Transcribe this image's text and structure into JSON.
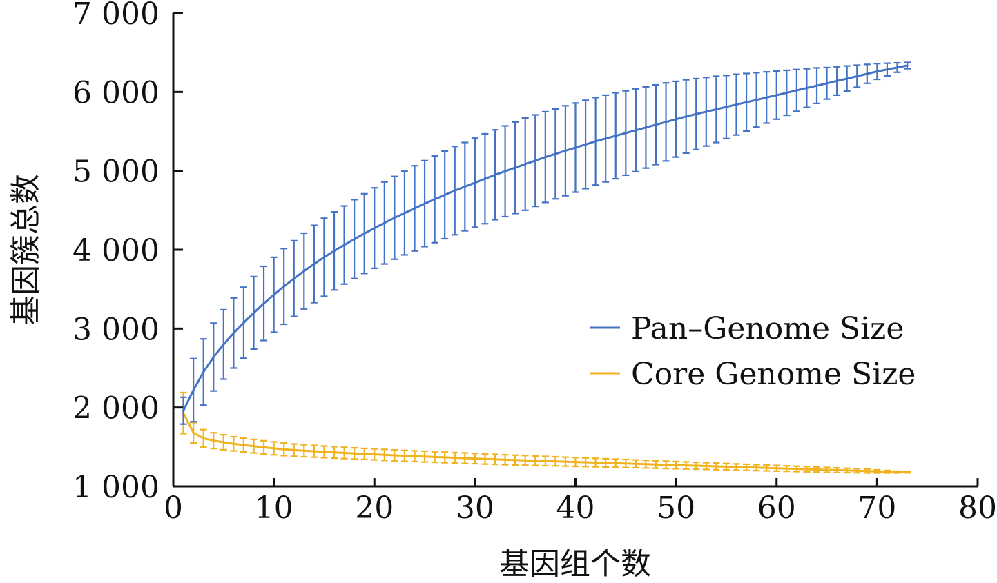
{
  "chart_data": {
    "type": "line",
    "xlabel": "基因组个数",
    "ylabel": "基因簇总数",
    "xlim": [
      0,
      80
    ],
    "ylim": [
      1000,
      7000
    ],
    "xticks": [
      "0",
      "10",
      "20",
      "30",
      "40",
      "50",
      "60",
      "70",
      "80"
    ],
    "yticks": [
      "1 000",
      "2 000",
      "3 000",
      "4 000",
      "5 000",
      "6 000",
      "7 000"
    ],
    "grid": false,
    "legend_position": "right",
    "x": [
      1,
      2,
      3,
      4,
      5,
      6,
      7,
      8,
      9,
      10,
      11,
      12,
      13,
      14,
      15,
      16,
      17,
      18,
      19,
      20,
      21,
      22,
      23,
      24,
      25,
      26,
      27,
      28,
      29,
      30,
      31,
      32,
      33,
      34,
      35,
      36,
      37,
      38,
      39,
      40,
      41,
      42,
      43,
      44,
      45,
      46,
      47,
      48,
      49,
      50,
      51,
      52,
      53,
      54,
      55,
      56,
      57,
      58,
      59,
      60,
      61,
      62,
      63,
      64,
      65,
      66,
      67,
      68,
      69,
      70,
      71,
      72,
      73
    ],
    "series": [
      {
        "name": "Pan–Genome Size",
        "color": "#4472C4",
        "values": [
          1960,
          2220,
          2450,
          2640,
          2800,
          2945,
          3075,
          3200,
          3320,
          3430,
          3535,
          3635,
          3730,
          3820,
          3905,
          3985,
          4060,
          4135,
          4205,
          4275,
          4340,
          4405,
          4465,
          4525,
          4585,
          4640,
          4695,
          4750,
          4800,
          4850,
          4900,
          4950,
          4995,
          5040,
          5085,
          5130,
          5175,
          5215,
          5255,
          5295,
          5335,
          5375,
          5410,
          5445,
          5480,
          5515,
          5550,
          5585,
          5620,
          5655,
          5690,
          5720,
          5750,
          5780,
          5810,
          5840,
          5870,
          5900,
          5930,
          5960,
          5990,
          6020,
          6050,
          6080,
          6110,
          6140,
          6170,
          6200,
          6230,
          6260,
          6285,
          6310,
          6335
        ],
        "errors": [
          170,
          400,
          420,
          430,
          440,
          445,
          450,
          460,
          470,
          475,
          480,
          480,
          480,
          490,
          495,
          495,
          495,
          500,
          505,
          510,
          520,
          525,
          530,
          540,
          545,
          550,
          555,
          560,
          560,
          565,
          570,
          570,
          575,
          580,
          585,
          580,
          575,
          570,
          570,
          565,
          560,
          555,
          550,
          545,
          535,
          525,
          515,
          505,
          495,
          480,
          465,
          450,
          435,
          420,
          400,
          385,
          365,
          345,
          325,
          305,
          285,
          265,
          245,
          225,
          200,
          180,
          160,
          140,
          120,
          100,
          80,
          60,
          40
        ]
      },
      {
        "name": "Core Genome Size",
        "color": "#F0B21E",
        "values": [
          1930,
          1680,
          1610,
          1580,
          1560,
          1540,
          1525,
          1510,
          1495,
          1482,
          1470,
          1460,
          1452,
          1445,
          1438,
          1431,
          1424,
          1418,
          1412,
          1406,
          1400,
          1394,
          1388,
          1383,
          1378,
          1373,
          1368,
          1363,
          1358,
          1353,
          1348,
          1343,
          1338,
          1334,
          1330,
          1326,
          1322,
          1318,
          1314,
          1310,
          1306,
          1302,
          1298,
          1294,
          1290,
          1286,
          1282,
          1278,
          1274,
          1270,
          1266,
          1262,
          1258,
          1254,
          1250,
          1246,
          1242,
          1238,
          1234,
          1230,
          1226,
          1222,
          1218,
          1214,
          1210,
          1206,
          1202,
          1198,
          1194,
          1190,
          1186,
          1182,
          1180
        ],
        "errors": [
          260,
          130,
          110,
          100,
          95,
          90,
          88,
          86,
          84,
          82,
          80,
          78,
          76,
          75,
          74,
          73,
          72,
          71,
          70,
          70,
          70,
          69,
          69,
          68,
          68,
          67,
          67,
          66,
          66,
          65,
          65,
          64,
          63,
          62,
          61,
          60,
          59,
          58,
          57,
          56,
          55,
          54,
          53,
          52,
          51,
          50,
          49,
          48,
          47,
          46,
          45,
          44,
          43,
          42,
          41,
          40,
          39,
          38,
          37,
          36,
          35,
          34,
          33,
          32,
          31,
          30,
          28,
          26,
          24,
          20,
          16,
          12,
          8
        ]
      }
    ]
  }
}
